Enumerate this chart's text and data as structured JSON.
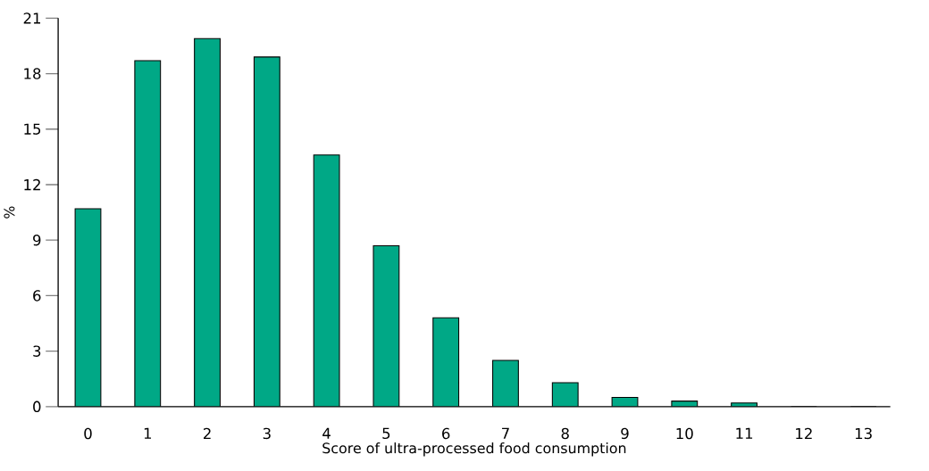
{
  "chart_data": {
    "type": "bar",
    "xlabel": "Score of ultra-processed food consumption",
    "ylabel": "%",
    "categories": [
      "0",
      "1",
      "2",
      "3",
      "4",
      "5",
      "6",
      "7",
      "8",
      "9",
      "10",
      "11",
      "12",
      "13"
    ],
    "values": [
      10.7,
      18.7,
      19.9,
      18.9,
      13.6,
      8.7,
      4.8,
      2.5,
      1.3,
      0.5,
      0.3,
      0.2,
      0,
      0
    ],
    "color": "#00a886",
    "ylim": [
      0,
      21
    ],
    "yticks": [
      0,
      3,
      6,
      9,
      12,
      15,
      18,
      21
    ],
    "grid": false
  }
}
